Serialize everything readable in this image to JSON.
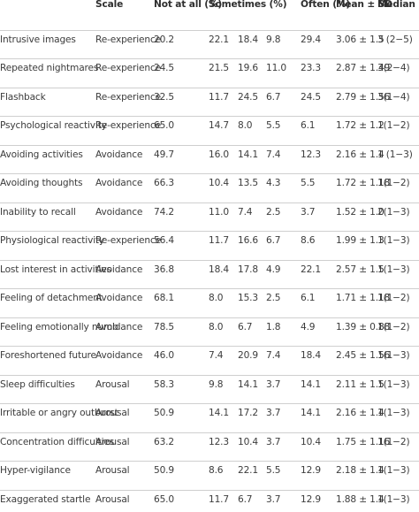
{
  "table": {
    "headers": {
      "item": "",
      "scale": "Scale",
      "not_at_all": "Not at all (%)",
      "sometimes": "Sometimes (%)",
      "often": "Often (%)",
      "mean_sd": "Mean ± SD",
      "median_iqr": "Median (IQR)"
    },
    "rows": [
      {
        "item": "Intrusive images",
        "scale": "Re-experience",
        "not_at_all": "20.2",
        "s1": "22.1",
        "s2": "18.4",
        "s3": "9.8",
        "often": "29.4",
        "mean_sd": "3.06 ± 1.5",
        "median": "3 (2−5)"
      },
      {
        "item": "Repeated nightmares",
        "scale": "Re-experience",
        "not_at_all": "24.5",
        "s1": "21.5",
        "s2": "19.6",
        "s3": "11.0",
        "often": "23.3",
        "mean_sd": "2.87 ± 1.49",
        "median": "3(2−4)"
      },
      {
        "item": "Flashback",
        "scale": "Re-experience",
        "not_at_all": "32.5",
        "s1": "11.7",
        "s2": "24.5",
        "s3": "6.7",
        "often": "24.5",
        "mean_sd": "2.79 ± 1.56",
        "median": "3(1−4)"
      },
      {
        "item": "Psychological reactivity",
        "scale": "Re-experience",
        "not_at_all": "65.0",
        "s1": "14.7",
        "s2": "8.0",
        "s3": "5.5",
        "often": "6.1",
        "mean_sd": "1.72 ± 1.2",
        "median": "1(1−2)"
      },
      {
        "item": "Avoiding activities",
        "scale": "Avoidance",
        "not_at_all": "49.7",
        "s1": "16.0",
        "s2": "14.1",
        "s3": "7.4",
        "often": "12.3",
        "mean_sd": "2.16 ± 1.4",
        "median": "1 (1−3)"
      },
      {
        "item": "Avoiding thoughts",
        "scale": "Avoidance",
        "not_at_all": "66.3",
        "s1": "10.4",
        "s2": "13.5",
        "s3": "4.3",
        "often": "5.5",
        "mean_sd": "1.72 ± 1.18",
        "median": "1(1−2)"
      },
      {
        "item": "Inability to recall",
        "scale": "Avoidance",
        "not_at_all": "74.2",
        "s1": "11.0",
        "s2": "7.4",
        "s3": "2.5",
        "often": "3.7",
        "mean_sd": "1.52 ± 1.0",
        "median": "2(1−3)"
      },
      {
        "item": "Physiological reactivity",
        "scale": "Re-experience",
        "not_at_all": "56.4",
        "s1": "11.7",
        "s2": "16.6",
        "s3": "6.7",
        "often": "8.6",
        "mean_sd": "1.99 ± 1.3",
        "median": "1(1−3)"
      },
      {
        "item": "Lost interest in activities",
        "scale": "Avoidance",
        "not_at_all": "36.8",
        "s1": "18.4",
        "s2": "17.8",
        "s3": "4.9",
        "often": "22.1",
        "mean_sd": "2.57 ± 1.5",
        "median": "1(1−3)"
      },
      {
        "item": "Feeling of detachment",
        "scale": "Avoidance",
        "not_at_all": "68.1",
        "s1": "8.0",
        "s2": "15.3",
        "s3": "2.5",
        "often": "6.1",
        "mean_sd": "1.71 ± 1.18",
        "median": "1(1−2)"
      },
      {
        "item": "Feeling emotionally numb",
        "scale": "Avoidance",
        "not_at_all": "78.5",
        "s1": "8.0",
        "s2": "6.7",
        "s3": "1.8",
        "often": "4.9",
        "mean_sd": "1.39 ± 0.88",
        "median": "1(1−2)"
      },
      {
        "item": "Foreshortened future",
        "scale": "Avoidance",
        "not_at_all": "46.0",
        "s1": "7.4",
        "s2": "20.9",
        "s3": "7.4",
        "often": "18.4",
        "mean_sd": "2.45 ± 1.56",
        "median": "1(1−3)"
      },
      {
        "item": "Sleep difficulties",
        "scale": "Arousal",
        "not_at_all": "58.3",
        "s1": "9.8",
        "s2": "14.1",
        "s3": "3.7",
        "often": "14.1",
        "mean_sd": "2.11 ± 1.5",
        "median": "1(1−3)"
      },
      {
        "item": "Irritable or angry outburst",
        "scale": "Arousal",
        "not_at_all": "50.9",
        "s1": "14.1",
        "s2": "17.2",
        "s3": "3.7",
        "often": "14.1",
        "mean_sd": "2.16 ± 1.4",
        "median": "1(1−3)"
      },
      {
        "item": "Concentration difficulties",
        "scale": "Arousal",
        "not_at_all": "63.2",
        "s1": "12.3",
        "s2": "10.4",
        "s3": "3.7",
        "often": "10.4",
        "mean_sd": "1.75 ± 1.16",
        "median": "1(1−2)"
      },
      {
        "item": "Hyper-vigilance",
        "scale": "Arousal",
        "not_at_all": "50.9",
        "s1": "8.6",
        "s2": "22.1",
        "s3": "5.5",
        "often": "12.9",
        "mean_sd": "2.18 ± 1.4",
        "median": "1(1−3)"
      },
      {
        "item": "Exaggerated startle",
        "scale": "Arousal",
        "not_at_all": "65.0",
        "s1": "11.7",
        "s2": "6.7",
        "s3": "3.7",
        "often": "12.9",
        "mean_sd": "1.88 ± 1.4",
        "median": "1(1−3)"
      }
    ]
  }
}
